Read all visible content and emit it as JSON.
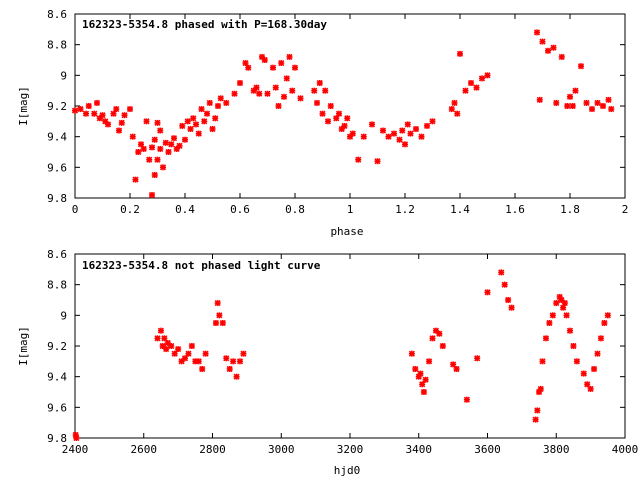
{
  "chart_data": [
    {
      "type": "scatter",
      "title": "162323-5354.8 phased with P=168.30day",
      "xlabel": "phase",
      "ylabel": "I[mag]",
      "xlim": [
        0,
        2
      ],
      "ylim": [
        9.8,
        8.6
      ],
      "y_inverted": true,
      "grid": false,
      "color": "#ff0000",
      "xticks": [
        "0",
        "0.2",
        "0.4",
        "0.6",
        "0.8",
        "1",
        "1.2",
        "1.4",
        "1.6",
        "1.8",
        "2"
      ],
      "yticks": [
        "8.6",
        "8.8",
        "9",
        "9.2",
        "9.4",
        "9.6",
        "9.8"
      ],
      "series": [
        {
          "x": [
            0.0,
            0.02,
            0.04,
            0.05,
            0.07,
            0.08,
            0.09,
            0.1,
            0.11,
            0.12,
            0.14,
            0.15,
            0.16,
            0.17,
            0.18,
            0.2,
            0.21,
            0.22,
            0.23,
            0.24,
            0.25,
            0.26,
            0.27,
            0.28,
            0.28,
            0.29,
            0.29,
            0.3,
            0.3,
            0.31,
            0.31,
            0.32,
            0.33,
            0.34,
            0.35,
            0.36,
            0.37,
            0.38,
            0.39,
            0.4,
            0.41,
            0.42,
            0.43,
            0.44,
            0.45,
            0.46,
            0.47,
            0.48,
            0.49,
            0.5,
            0.51,
            0.52,
            0.53,
            0.55,
            0.58,
            0.6,
            0.62,
            0.63,
            0.65,
            0.66,
            0.67,
            0.68,
            0.69,
            0.7,
            0.72,
            0.73,
            0.74,
            0.75,
            0.76,
            0.77,
            0.78,
            0.79,
            0.8,
            0.82,
            0.87,
            0.88,
            0.89,
            0.9,
            0.91,
            0.92,
            0.93,
            0.95,
            0.96,
            0.97,
            0.98,
            0.99,
            1.0,
            1.01,
            1.03,
            1.05,
            1.08,
            1.1,
            1.12,
            1.14,
            1.16,
            1.18,
            1.19,
            1.2,
            1.21,
            1.22,
            1.24,
            1.26,
            1.28,
            1.3,
            1.37,
            1.38,
            1.39,
            1.4,
            1.42,
            1.44,
            1.46,
            1.48,
            1.5,
            1.68,
            1.69,
            1.7,
            1.72,
            1.74,
            1.75,
            1.77,
            1.79,
            1.8,
            1.81,
            1.82,
            1.84,
            1.86,
            1.88,
            1.9,
            1.92,
            1.94,
            1.95
          ],
          "y": [
            9.23,
            9.22,
            9.25,
            9.2,
            9.25,
            9.18,
            9.28,
            9.26,
            9.3,
            9.32,
            9.25,
            9.22,
            9.36,
            9.31,
            9.26,
            9.22,
            9.4,
            9.68,
            9.5,
            9.45,
            9.48,
            9.3,
            9.55,
            9.47,
            9.78,
            9.65,
            9.42,
            9.31,
            9.55,
            9.48,
            9.36,
            9.6,
            9.44,
            9.5,
            9.45,
            9.41,
            9.48,
            9.46,
            9.33,
            9.42,
            9.3,
            9.35,
            9.28,
            9.32,
            9.38,
            9.22,
            9.3,
            9.25,
            9.18,
            9.35,
            9.28,
            9.2,
            9.15,
            9.18,
            9.12,
            9.05,
            8.92,
            8.95,
            9.1,
            9.08,
            9.12,
            8.88,
            8.9,
            9.12,
            8.95,
            9.08,
            9.2,
            8.92,
            9.14,
            9.02,
            8.88,
            9.1,
            8.95,
            9.15,
            9.1,
            9.18,
            9.05,
            9.25,
            9.1,
            9.3,
            9.2,
            9.28,
            9.25,
            9.35,
            9.33,
            9.28,
            9.4,
            9.38,
            9.55,
            9.4,
            9.32,
            9.56,
            9.36,
            9.4,
            9.38,
            9.42,
            9.36,
            9.45,
            9.32,
            9.38,
            9.35,
            9.4,
            9.33,
            9.3,
            9.22,
            9.18,
            9.25,
            8.86,
            9.1,
            9.05,
            9.08,
            9.02,
            9.0,
            8.72,
            9.16,
            8.78,
            8.84,
            8.82,
            9.18,
            8.88,
            9.2,
            9.14,
            9.2,
            9.1,
            8.94,
            9.18,
            9.22,
            9.18,
            9.2,
            9.16,
            9.22
          ]
        }
      ]
    },
    {
      "type": "scatter",
      "title": "162323-5354.8 not phased light curve",
      "xlabel": "hjd0",
      "ylabel": "I[mag]",
      "xlim": [
        2400,
        4000
      ],
      "ylim": [
        9.8,
        8.6
      ],
      "y_inverted": true,
      "grid": false,
      "color": "#ff0000",
      "xticks": [
        "2400",
        "2600",
        "2800",
        "3000",
        "3200",
        "3400",
        "3600",
        "3800",
        "4000"
      ],
      "yticks": [
        "8.6",
        "8.8",
        "9",
        "9.2",
        "9.4",
        "9.6",
        "9.8"
      ],
      "series": [
        {
          "x": [
            2402,
            2404,
            2640,
            2650,
            2655,
            2660,
            2665,
            2670,
            2680,
            2690,
            2700,
            2710,
            2720,
            2730,
            2740,
            2750,
            2760,
            2770,
            2780,
            2810,
            2815,
            2820,
            2830,
            2840,
            2850,
            2860,
            2870,
            2880,
            2890,
            3380,
            3390,
            3400,
            3405,
            3410,
            3415,
            3420,
            3430,
            3440,
            3450,
            3460,
            3470,
            3500,
            3510,
            3540,
            3570,
            3600,
            3640,
            3650,
            3660,
            3670,
            3740,
            3745,
            3750,
            3755,
            3760,
            3770,
            3780,
            3790,
            3800,
            3810,
            3815,
            3820,
            3825,
            3830,
            3840,
            3850,
            3860,
            3880,
            3890,
            3900,
            3910,
            3920,
            3930,
            3940,
            3950
          ],
          "y": [
            9.78,
            9.8,
            9.15,
            9.1,
            9.2,
            9.15,
            9.22,
            9.18,
            9.2,
            9.25,
            9.22,
            9.3,
            9.28,
            9.25,
            9.2,
            9.3,
            9.3,
            9.35,
            9.25,
            9.05,
            8.92,
            9.0,
            9.05,
            9.28,
            9.35,
            9.3,
            9.4,
            9.3,
            9.25,
            9.25,
            9.35,
            9.4,
            9.38,
            9.45,
            9.5,
            9.42,
            9.3,
            9.15,
            9.1,
            9.12,
            9.2,
            9.32,
            9.35,
            9.55,
            9.28,
            8.85,
            8.72,
            8.8,
            8.9,
            8.95,
            9.68,
            9.62,
            9.5,
            9.48,
            9.3,
            9.15,
            9.05,
            9.0,
            8.92,
            8.88,
            8.9,
            8.95,
            8.92,
            9.0,
            9.1,
            9.2,
            9.3,
            9.38,
            9.45,
            9.48,
            9.35,
            9.25,
            9.15,
            9.05,
            9.0
          ]
        }
      ]
    }
  ]
}
